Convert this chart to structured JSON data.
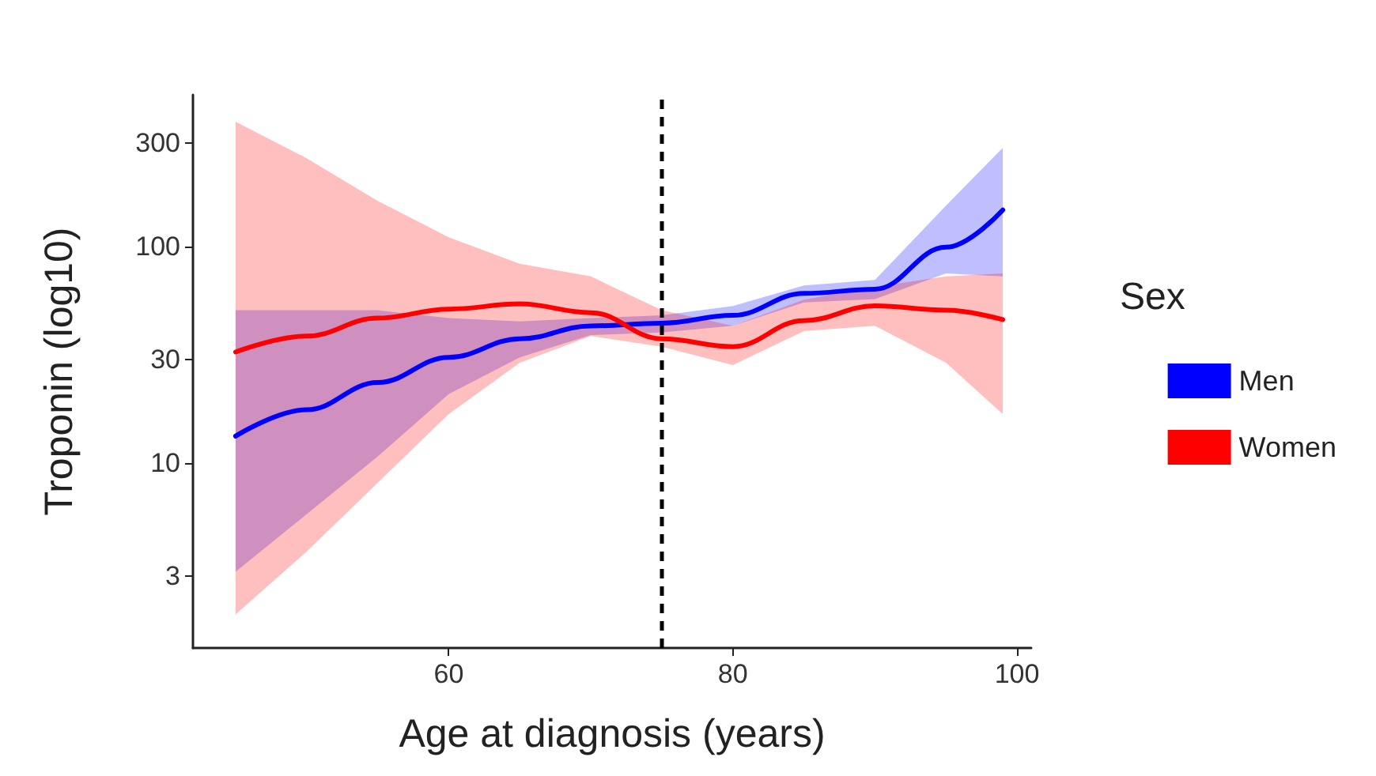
{
  "chart_data": {
    "type": "line",
    "xlabel": "Age at diagnosis (years)",
    "ylabel": "Troponin (log10)",
    "legend_title": "Sex",
    "x": [
      45,
      50,
      55,
      60,
      65,
      70,
      75,
      80,
      85,
      90,
      95,
      99
    ],
    "series": [
      {
        "name": "Men",
        "color": "#0000ff",
        "values": [
          13.3,
          17.6,
          23.5,
          30.7,
          37.4,
          42.9,
          44.2,
          48,
          60.6,
          63.4,
          99,
          147
        ],
        "lower": [
          3.15,
          5.8,
          10.7,
          20.8,
          30.7,
          38.9,
          40,
          43,
          55,
          57,
          75,
          72.6
        ],
        "upper": [
          50.7,
          50.7,
          50.7,
          46.6,
          45,
          46.6,
          48,
          53,
          66,
          70,
          154,
          285
        ]
      },
      {
        "name": "Women",
        "color": "#ff0000",
        "values": [
          32.5,
          38.5,
          46.6,
          51.3,
          54.2,
          49.4,
          37.4,
          34.4,
          45.4,
          53.1,
          50.7,
          45.9
        ],
        "lower": [
          2,
          3.9,
          8.1,
          16.8,
          29,
          38.5,
          34.4,
          28.3,
          40.6,
          43,
          29,
          16.8
        ],
        "upper": [
          376,
          255,
          162,
          110,
          83,
          72.6,
          50.7,
          43,
          56.7,
          65,
          72.6,
          75
        ]
      }
    ],
    "xlim": [
      42,
      101
    ],
    "xticks": [
      60,
      80,
      100
    ],
    "ylim": [
      1.4,
      500
    ],
    "yticks": [
      3,
      10,
      30,
      100,
      300
    ],
    "log": "y",
    "grid": false,
    "legend": "right",
    "marker": "none",
    "line_style": "solid",
    "ref_lines": [
      {
        "axis": "x",
        "value": 75,
        "color": "#000000",
        "line_style": "dashed"
      }
    ]
  }
}
